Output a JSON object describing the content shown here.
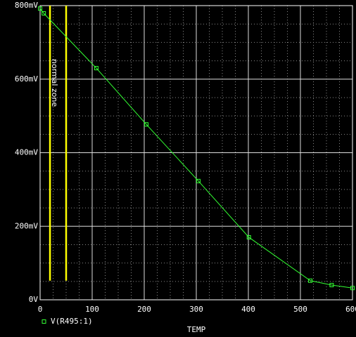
{
  "chart_data": {
    "type": "line",
    "x_label": "TEMP",
    "series": [
      {
        "name": "V(R495:1)",
        "color": "#33ff33",
        "x": [
          0,
          7,
          108,
          204,
          304,
          401,
          519,
          560,
          600
        ],
        "values": [
          792,
          779,
          630,
          477,
          323,
          170,
          52,
          40,
          32
        ]
      }
    ],
    "xlim": [
      0,
      600
    ],
    "xticks": [
      0,
      100,
      200,
      300,
      400,
      500,
      600
    ],
    "ylim": [
      0,
      800
    ],
    "yticks": [
      {
        "value": 0,
        "label": "0V"
      },
      {
        "value": 200,
        "label": "200mV"
      },
      {
        "value": 400,
        "label": "400mV"
      },
      {
        "value": 600,
        "label": "600mV"
      },
      {
        "value": 800,
        "label": "800mV"
      }
    ],
    "grid": true,
    "markers": true,
    "annotations": [
      {
        "text": "normal zone",
        "color": "#ffff00",
        "lines": [
          {
            "x": 19,
            "ylim": [
              52,
              800
            ]
          },
          {
            "x": 50,
            "ylim": [
              52,
              800
            ]
          }
        ]
      }
    ]
  }
}
